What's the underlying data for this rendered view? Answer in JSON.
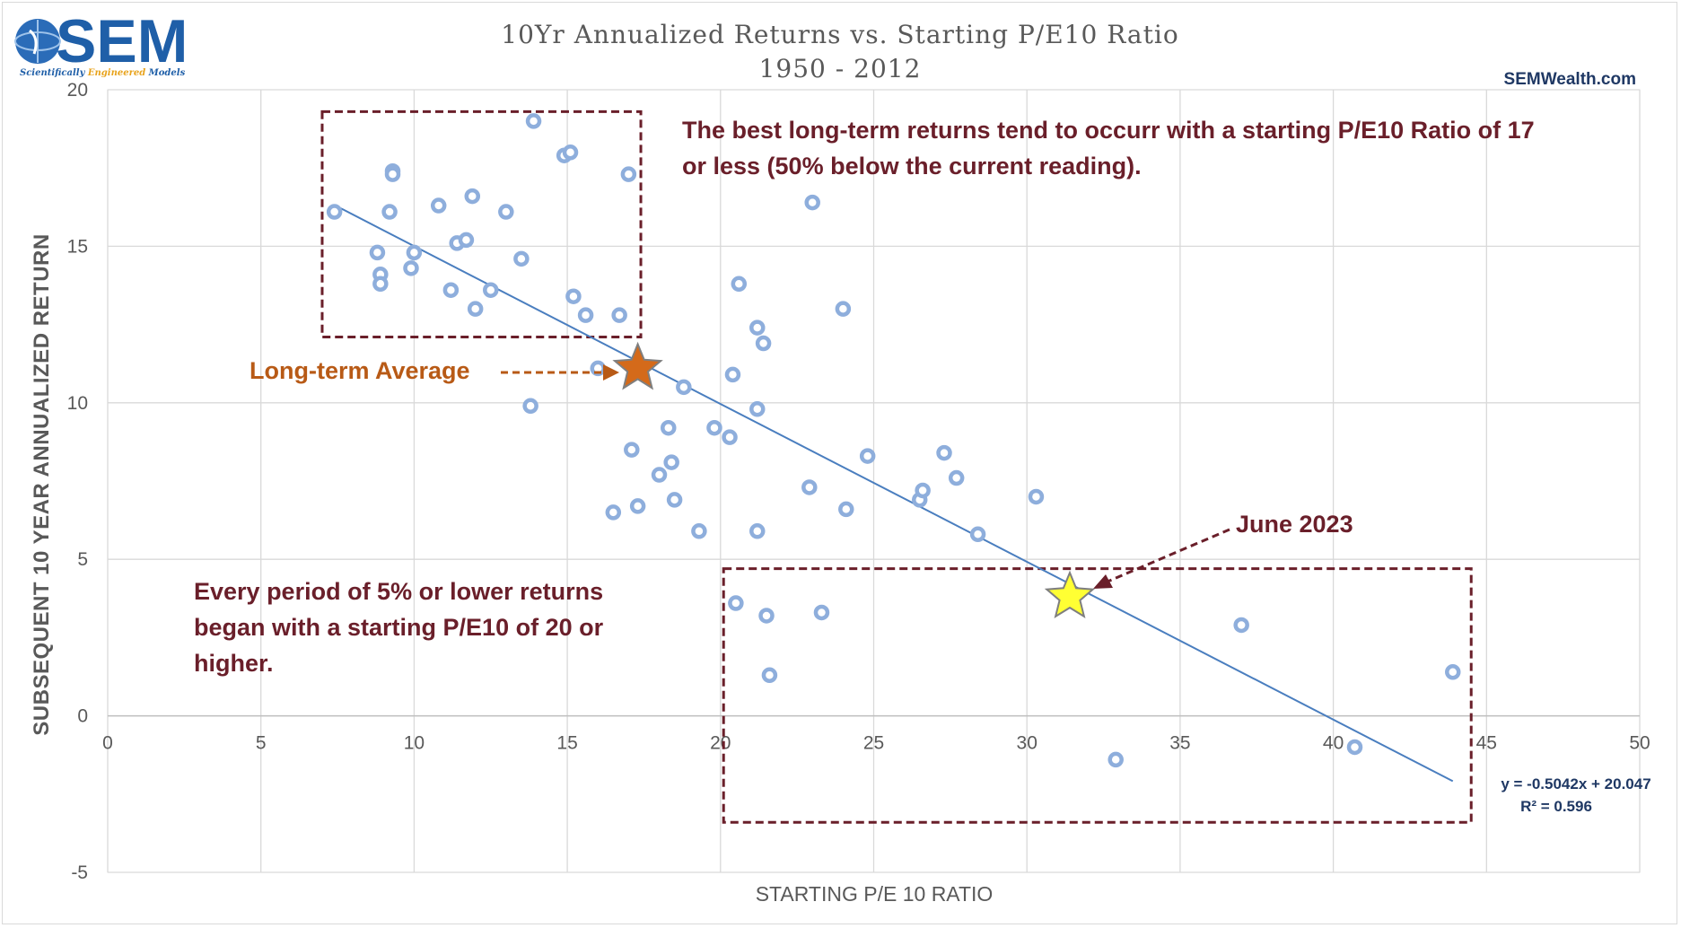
{
  "logo": {
    "brand": "SEM",
    "tagline_a": "Scientifically ",
    "tagline_b": "Engineered",
    "tagline_c": " Models"
  },
  "website": "SEMWealth.com",
  "chart_data": {
    "type": "scatter",
    "title": "10Yr Annualized Returns vs. Starting P/E10 Ratio",
    "subtitle": "1950 - 2012",
    "xlabel": "STARTING P/E 10 RATIO",
    "ylabel": "SUBSEQUENT 10 YEAR ANNUALIZED RETURN",
    "xlim": [
      0,
      50
    ],
    "ylim": [
      -5,
      20
    ],
    "xticks": [
      0,
      5,
      10,
      15,
      20,
      25,
      30,
      35,
      40,
      45,
      50
    ],
    "yticks": [
      -5,
      0,
      5,
      10,
      15,
      20
    ],
    "grid": true,
    "points": [
      [
        7.4,
        16.1
      ],
      [
        8.8,
        14.8
      ],
      [
        8.9,
        14.1
      ],
      [
        8.9,
        13.8
      ],
      [
        9.2,
        16.1
      ],
      [
        9.3,
        17.4
      ],
      [
        9.3,
        17.3
      ],
      [
        9.9,
        14.3
      ],
      [
        10.0,
        14.8
      ],
      [
        10.8,
        16.3
      ],
      [
        11.2,
        13.6
      ],
      [
        11.4,
        15.1
      ],
      [
        11.7,
        15.2
      ],
      [
        11.9,
        16.6
      ],
      [
        12.0,
        13.0
      ],
      [
        12.5,
        13.6
      ],
      [
        13.0,
        16.1
      ],
      [
        13.5,
        14.6
      ],
      [
        13.8,
        9.9
      ],
      [
        13.9,
        19.0
      ],
      [
        14.9,
        17.9
      ],
      [
        15.1,
        18.0
      ],
      [
        15.2,
        13.4
      ],
      [
        15.6,
        12.8
      ],
      [
        16.0,
        11.1
      ],
      [
        16.5,
        6.5
      ],
      [
        16.7,
        12.8
      ],
      [
        17.0,
        17.3
      ],
      [
        17.1,
        8.5
      ],
      [
        17.3,
        6.7
      ],
      [
        18.0,
        7.7
      ],
      [
        18.3,
        9.2
      ],
      [
        18.4,
        8.1
      ],
      [
        18.5,
        6.9
      ],
      [
        18.8,
        10.5
      ],
      [
        19.3,
        5.9
      ],
      [
        19.8,
        9.2
      ],
      [
        20.3,
        8.9
      ],
      [
        20.4,
        10.9
      ],
      [
        20.5,
        3.6
      ],
      [
        20.6,
        13.8
      ],
      [
        21.2,
        12.4
      ],
      [
        21.2,
        9.8
      ],
      [
        21.2,
        5.9
      ],
      [
        21.4,
        11.9
      ],
      [
        21.5,
        3.2
      ],
      [
        21.6,
        1.3
      ],
      [
        23.0,
        16.4
      ],
      [
        22.9,
        7.3
      ],
      [
        23.3,
        3.3
      ],
      [
        24.0,
        13.0
      ],
      [
        24.1,
        6.6
      ],
      [
        24.8,
        8.3
      ],
      [
        26.5,
        6.9
      ],
      [
        26.6,
        7.2
      ],
      [
        27.3,
        8.4
      ],
      [
        27.7,
        7.6
      ],
      [
        28.4,
        5.8
      ],
      [
        30.3,
        7.0
      ],
      [
        32.9,
        -1.4
      ],
      [
        37.0,
        2.9
      ],
      [
        40.7,
        -1.0
      ],
      [
        43.9,
        1.4
      ]
    ],
    "trendline": {
      "x_start": 7.4,
      "x_end": 43.9,
      "slope": -0.5042,
      "intercept": 20.047
    },
    "trendline_equation": "y = -0.5042x + 20.047",
    "trendline_r2": "R² = 0.596",
    "long_term_average": {
      "x": 17.3,
      "y": 11.1,
      "label": "Long-term Average"
    },
    "june_2023": {
      "x": 31.4,
      "y": 3.8,
      "label": "June 2023"
    },
    "annotations": {
      "best_returns_line1": "The best long-term returns tend to occurr with a starting P/E10 Ratio of 17",
      "best_returns_line2": "or less (50% below the current reading).",
      "low_returns_line1": "Every period of 5% or lower returns",
      "low_returns_line2": "began with a starting P/E10 of 20 or",
      "low_returns_line3": "higher."
    },
    "boxes": [
      {
        "name": "low-pe-box",
        "x_from": 7.0,
        "x_to": 17.4,
        "y_from": 12.1,
        "y_to": 19.3
      },
      {
        "name": "high-pe-box",
        "x_from": 20.1,
        "x_to": 44.5,
        "y_from": -3.4,
        "y_to": 4.7
      }
    ],
    "colors": {
      "marker": "#8eaedc",
      "trendline": "#4a7ebf",
      "grid": "#d9d9d9",
      "annotation": "#6a1f2a",
      "long_term_star": "#d46a1a",
      "june_star": "#ffff33"
    }
  }
}
